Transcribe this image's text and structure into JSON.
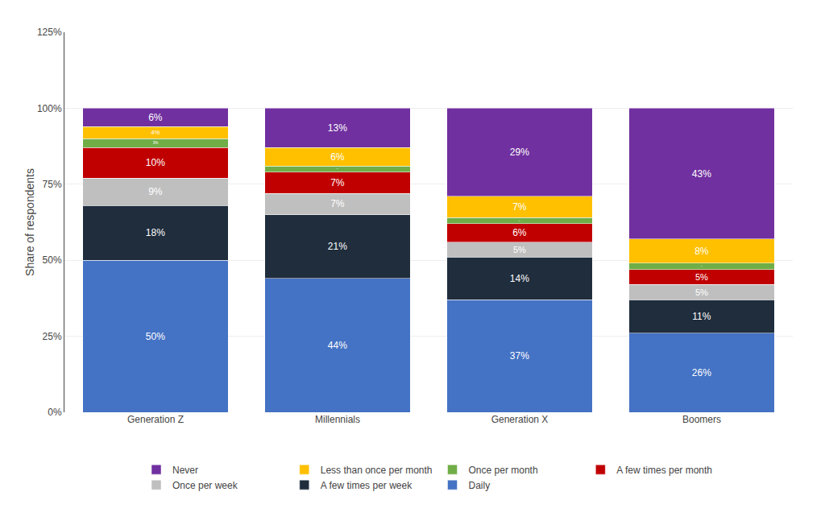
{
  "chart_data": {
    "type": "bar",
    "stacked": true,
    "data_labels": true,
    "grid": true,
    "legend": "bottom",
    "ylabel": "Share of respondents",
    "categories": [
      "Generation Z",
      "Millennials",
      "Generation X",
      "Boomers"
    ],
    "series": [
      {
        "name": "Daily",
        "color": "#4472C4",
        "values": [
          50,
          44,
          37,
          26
        ],
        "value_labels": [
          "50%",
          "44%",
          "37%",
          "26%"
        ]
      },
      {
        "name": "A few times per week",
        "color": "#1F2D3D",
        "values": [
          18,
          21,
          14,
          11
        ],
        "value_labels": [
          "18%",
          "21%",
          "14%",
          "11%"
        ]
      },
      {
        "name": "Once per week",
        "color": "#BFBFBF",
        "values": [
          9,
          7,
          5,
          5
        ],
        "value_labels": [
          "9%",
          "7%",
          "5%",
          "5%"
        ]
      },
      {
        "name": "A few times per month",
        "color": "#C00000",
        "values": [
          10,
          7,
          6,
          5
        ],
        "value_labels": [
          "10%",
          "7%",
          "6%",
          "5%"
        ]
      },
      {
        "name": "Once per month",
        "color": "#70AD47",
        "values": [
          3,
          2,
          2,
          2
        ],
        "value_labels": [
          "3%",
          "2%",
          "2%",
          "2%"
        ]
      },
      {
        "name": "Less than once per month",
        "color": "#FFC000",
        "values": [
          4,
          6,
          7,
          8
        ],
        "value_labels": [
          "4%",
          "6%",
          "7%",
          "8%"
        ]
      },
      {
        "name": "Never",
        "color": "#7030A0",
        "values": [
          6,
          13,
          29,
          43
        ],
        "value_labels": [
          "6%",
          "13%",
          "29%",
          "43%"
        ]
      }
    ],
    "ylim": [
      0,
      125
    ],
    "yticks": [
      {
        "value": 0,
        "label": "0%"
      },
      {
        "value": 25,
        "label": "25%"
      },
      {
        "value": 50,
        "label": "50%"
      },
      {
        "value": 75,
        "label": "75%"
      },
      {
        "value": 100,
        "label": "100%"
      },
      {
        "value": 125,
        "label": "125%"
      }
    ]
  }
}
